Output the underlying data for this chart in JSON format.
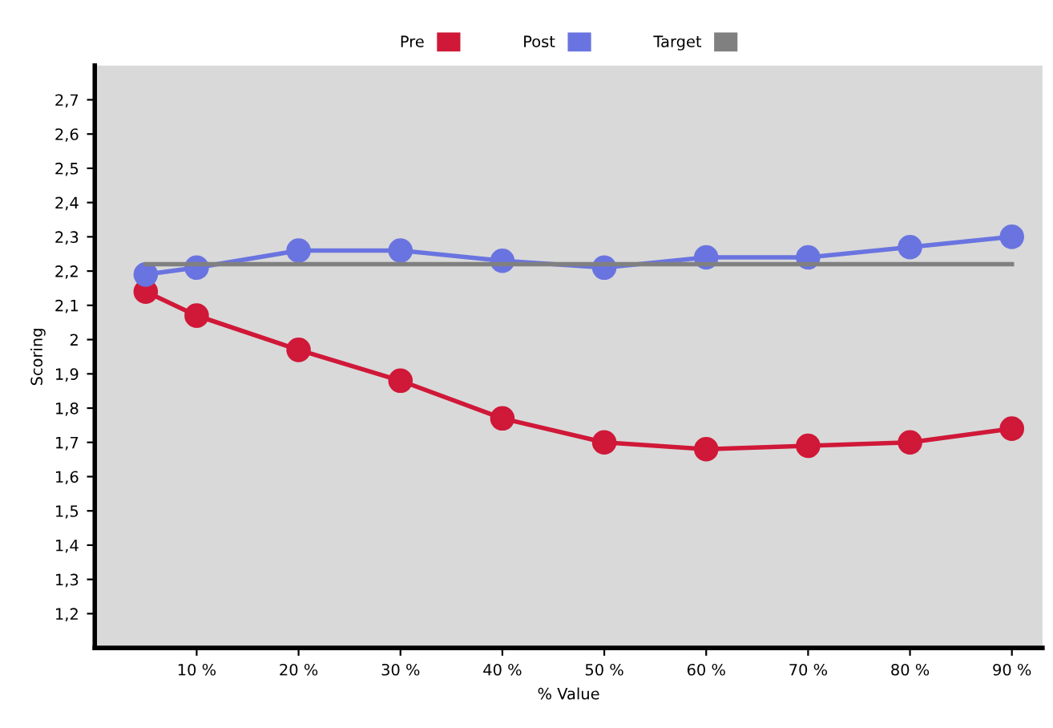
{
  "chart_data": {
    "type": "line",
    "xlabel": "% Value",
    "ylabel": "Scoring",
    "xlim": [
      0,
      93
    ],
    "ylim": [
      1.1,
      2.8
    ],
    "xticks": [
      {
        "value": 10,
        "label": "10 %"
      },
      {
        "value": 20,
        "label": "20 %"
      },
      {
        "value": 30,
        "label": "30 %"
      },
      {
        "value": 40,
        "label": "40 %"
      },
      {
        "value": 50,
        "label": "50 %"
      },
      {
        "value": 60,
        "label": "60 %"
      },
      {
        "value": 70,
        "label": "70 %"
      },
      {
        "value": 80,
        "label": "80 %"
      },
      {
        "value": 90,
        "label": "90 %"
      }
    ],
    "yticks": [
      {
        "value": 1.2,
        "label": "1,2"
      },
      {
        "value": 1.3,
        "label": "1,3"
      },
      {
        "value": 1.4,
        "label": "1,4"
      },
      {
        "value": 1.5,
        "label": "1,5"
      },
      {
        "value": 1.6,
        "label": "1,6"
      },
      {
        "value": 1.7,
        "label": "1,7"
      },
      {
        "value": 1.8,
        "label": "1,8"
      },
      {
        "value": 1.9,
        "label": "1,9"
      },
      {
        "value": 2,
        "label": "2"
      },
      {
        "value": 2.1,
        "label": "2,1"
      },
      {
        "value": 2.2,
        "label": "2,2"
      },
      {
        "value": 2.3,
        "label": "2,3"
      },
      {
        "value": 2.4,
        "label": "2,4"
      },
      {
        "value": 2.5,
        "label": "2,5"
      },
      {
        "value": 2.6,
        "label": "2,6"
      },
      {
        "value": 2.7,
        "label": "2,7"
      }
    ],
    "grid": false,
    "legend": "top",
    "series": [
      {
        "name": "Pre",
        "color": "#d01838",
        "marker": "circle",
        "x": [
          5,
          10,
          20,
          30,
          40,
          50,
          60,
          70,
          80,
          90
        ],
        "values": [
          2.14,
          2.07,
          1.97,
          1.88,
          1.77,
          1.7,
          1.68,
          1.69,
          1.7,
          1.74
        ]
      },
      {
        "name": "Post",
        "color": "#6a74e0",
        "marker": "circle",
        "x": [
          5,
          10,
          20,
          30,
          40,
          50,
          60,
          70,
          80,
          90
        ],
        "values": [
          2.19,
          2.21,
          2.26,
          2.26,
          2.23,
          2.21,
          2.24,
          2.24,
          2.27,
          2.3
        ]
      },
      {
        "name": "Target",
        "color": "#808080",
        "marker": "none",
        "x": [
          5,
          90
        ],
        "values": [
          2.22,
          2.22
        ]
      }
    ]
  }
}
